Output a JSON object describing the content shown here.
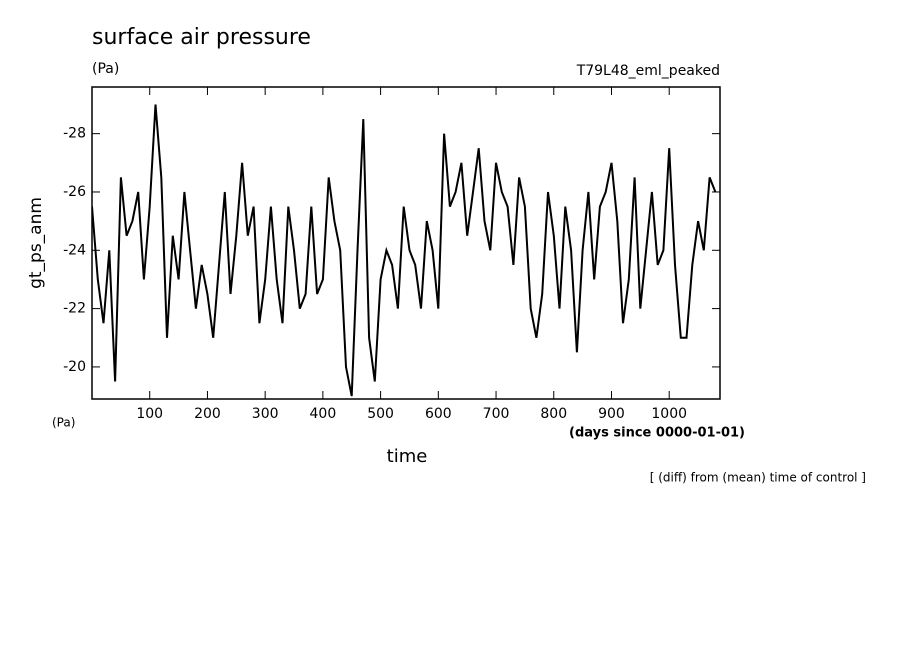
{
  "chart_data": {
    "type": "line",
    "title": "surface air pressure",
    "units_top": "(Pa)",
    "run_label": "T79L48_eml_peaked",
    "y_label": "gt_ps_anm",
    "units_bottom": "(Pa)",
    "x_units": "(days since 0000-01-01)",
    "x_label": "time",
    "note": "[ (diff) from (mean) time of control ]",
    "x": [
      0,
      10,
      20,
      30,
      40,
      50,
      60,
      70,
      80,
      90,
      100,
      110,
      120,
      130,
      140,
      150,
      160,
      170,
      180,
      190,
      200,
      210,
      220,
      230,
      240,
      250,
      260,
      270,
      280,
      290,
      300,
      310,
      320,
      330,
      340,
      350,
      360,
      370,
      380,
      390,
      400,
      410,
      420,
      430,
      440,
      450,
      460,
      470,
      480,
      490,
      500,
      510,
      520,
      530,
      540,
      550,
      560,
      570,
      580,
      590,
      600,
      610,
      620,
      630,
      640,
      650,
      660,
      670,
      680,
      690,
      700,
      710,
      720,
      730,
      740,
      750,
      760,
      770,
      780,
      790,
      800,
      810,
      820,
      830,
      840,
      850,
      860,
      870,
      880,
      890,
      900,
      910,
      920,
      930,
      940,
      950,
      960,
      970,
      980,
      990,
      1000,
      1010,
      1020,
      1030,
      1040,
      1050,
      1060,
      1070,
      1080
    ],
    "series": [
      {
        "color": "#000000",
        "values": [
          -25.5,
          -23,
          -21.5,
          -24,
          -19.5,
          -26.5,
          -24.5,
          -25,
          -26,
          -23,
          -25.5,
          -29,
          -26.5,
          -21,
          -24.5,
          -23,
          -26,
          -24,
          -22,
          -23.5,
          -22.5,
          -21,
          -23.5,
          -26,
          -22.5,
          -24.5,
          -27,
          -24.5,
          -25.5,
          -21.5,
          -23,
          -25.5,
          -23,
          -21.5,
          -25.5,
          -24,
          -22,
          -22.5,
          -25.5,
          -22.5,
          -23,
          -26.5,
          -25,
          -24,
          -20,
          -19,
          -24,
          -28.5,
          -21,
          -19.5,
          -23,
          -24,
          -23.5,
          -22,
          -25.5,
          -24,
          -23.5,
          -22,
          -25,
          -24,
          -22,
          -28,
          -25.5,
          -26,
          -27,
          -24.5,
          -26,
          -27.5,
          -25,
          -24,
          -27,
          -26,
          -25.5,
          -23.5,
          -26.5,
          -25.5,
          -22,
          -21,
          -22.5,
          -26,
          -24.5,
          -22,
          -25.5,
          -24,
          -20.5,
          -24,
          -26,
          -23,
          -25.5,
          -26,
          -27,
          -25,
          -21.5,
          -23,
          -26.5,
          -22,
          -24,
          -26,
          -23.5,
          -24,
          -27.5,
          -23.5,
          -21,
          -21,
          -23.5,
          -25,
          -24,
          -26.5,
          -26
        ]
      }
    ],
    "xlim": [
      0,
      1088
    ],
    "xticks": [
      100,
      200,
      300,
      400,
      500,
      600,
      700,
      800,
      900,
      1000
    ],
    "ylim": [
      -29.6,
      -18.9
    ],
    "y_inverted": true,
    "yticks": [
      -28,
      -26,
      -24,
      -22,
      -20
    ]
  }
}
